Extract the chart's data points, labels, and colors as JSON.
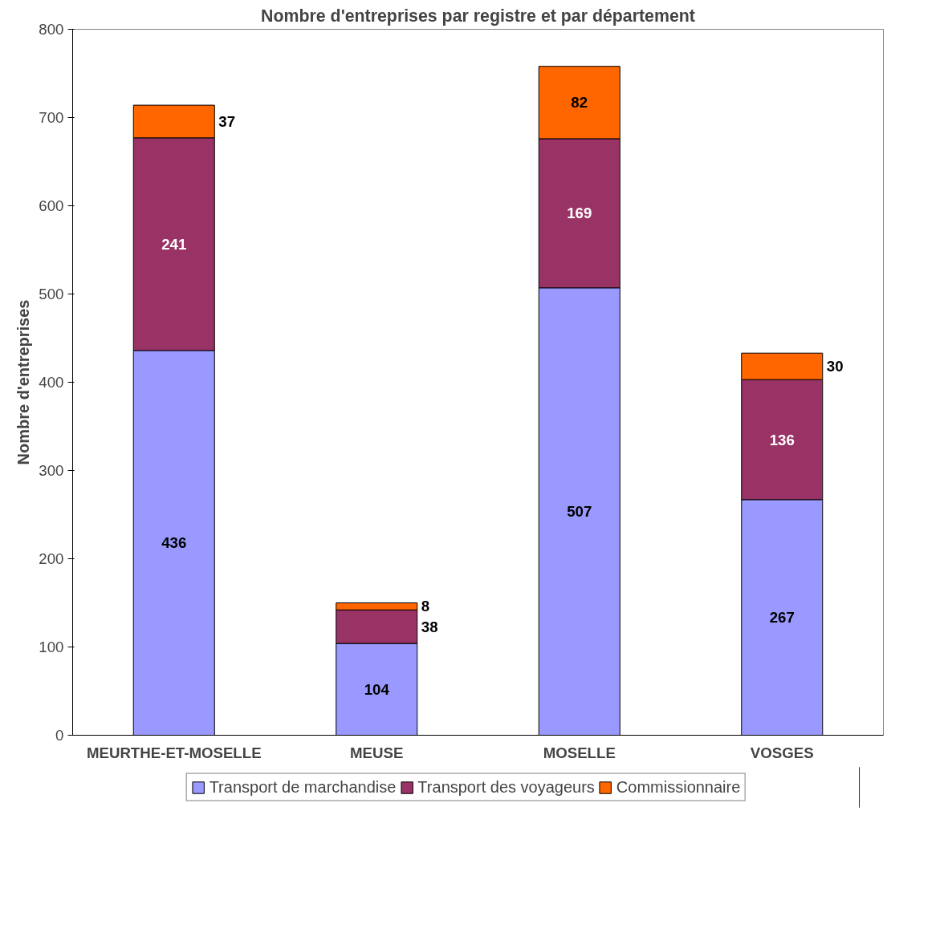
{
  "chart_data": {
    "type": "bar",
    "title": "Nombre d'entreprises par registre et par département",
    "ylabel": "Nombre d'entreprises",
    "categories": [
      "MEURTHE-ET-MOSELLE",
      "MEUSE",
      "MOSELLE",
      "VOSGES"
    ],
    "series": [
      {
        "name": "Transport de marchandise",
        "color": "#9999ff",
        "values": [
          436,
          104,
          507,
          267
        ]
      },
      {
        "name": "Transport des voyageurs",
        "color": "#993366",
        "values": [
          241,
          38,
          169,
          136
        ]
      },
      {
        "name": "Commissionnaire",
        "color": "#ff6600",
        "values": [
          37,
          8,
          82,
          30
        ]
      }
    ],
    "stacked": true,
    "ylim": [
      0,
      800
    ],
    "yticks": [
      0,
      100,
      200,
      300,
      400,
      500,
      600,
      700,
      800
    ],
    "data_labels": true,
    "legend": "bottom"
  }
}
